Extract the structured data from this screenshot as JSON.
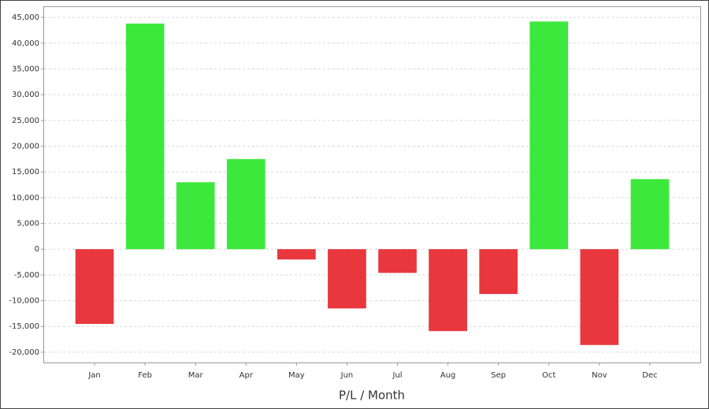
{
  "chart_data": {
    "type": "bar",
    "x_label": "P/L / Month",
    "categories": [
      "Jan",
      "Feb",
      "Mar",
      "Apr",
      "May",
      "Jun",
      "Jul",
      "Aug",
      "Sep",
      "Oct",
      "Nov",
      "Dec"
    ],
    "values": [
      -14500,
      43800,
      13000,
      17500,
      -2000,
      -11500,
      -4600,
      -15900,
      -8700,
      44200,
      -18600,
      13600
    ],
    "colors": {
      "positive": "#3de83d",
      "negative": "#e8373d"
    },
    "ylim": [
      -22000,
      47000
    ],
    "yticks": [
      {
        "value": -20000,
        "label": "-20,000"
      },
      {
        "value": -15000,
        "label": "-15,000"
      },
      {
        "value": -10000,
        "label": "-10,000"
      },
      {
        "value": -5000,
        "label": "-5,000"
      },
      0,
      {
        "value": 5000,
        "label": "5,000"
      },
      {
        "value": 10000,
        "label": "10,000"
      },
      {
        "value": 15000,
        "label": "15,000"
      },
      {
        "value": 20000,
        "label": "20,000"
      },
      {
        "value": 25000,
        "label": "25,000"
      },
      {
        "value": 30000,
        "label": "30,000"
      },
      {
        "value": 35000,
        "label": "35,000"
      },
      {
        "value": 40000,
        "label": "40,000"
      },
      {
        "value": 45000,
        "label": "45,000"
      }
    ],
    "grid": true
  }
}
